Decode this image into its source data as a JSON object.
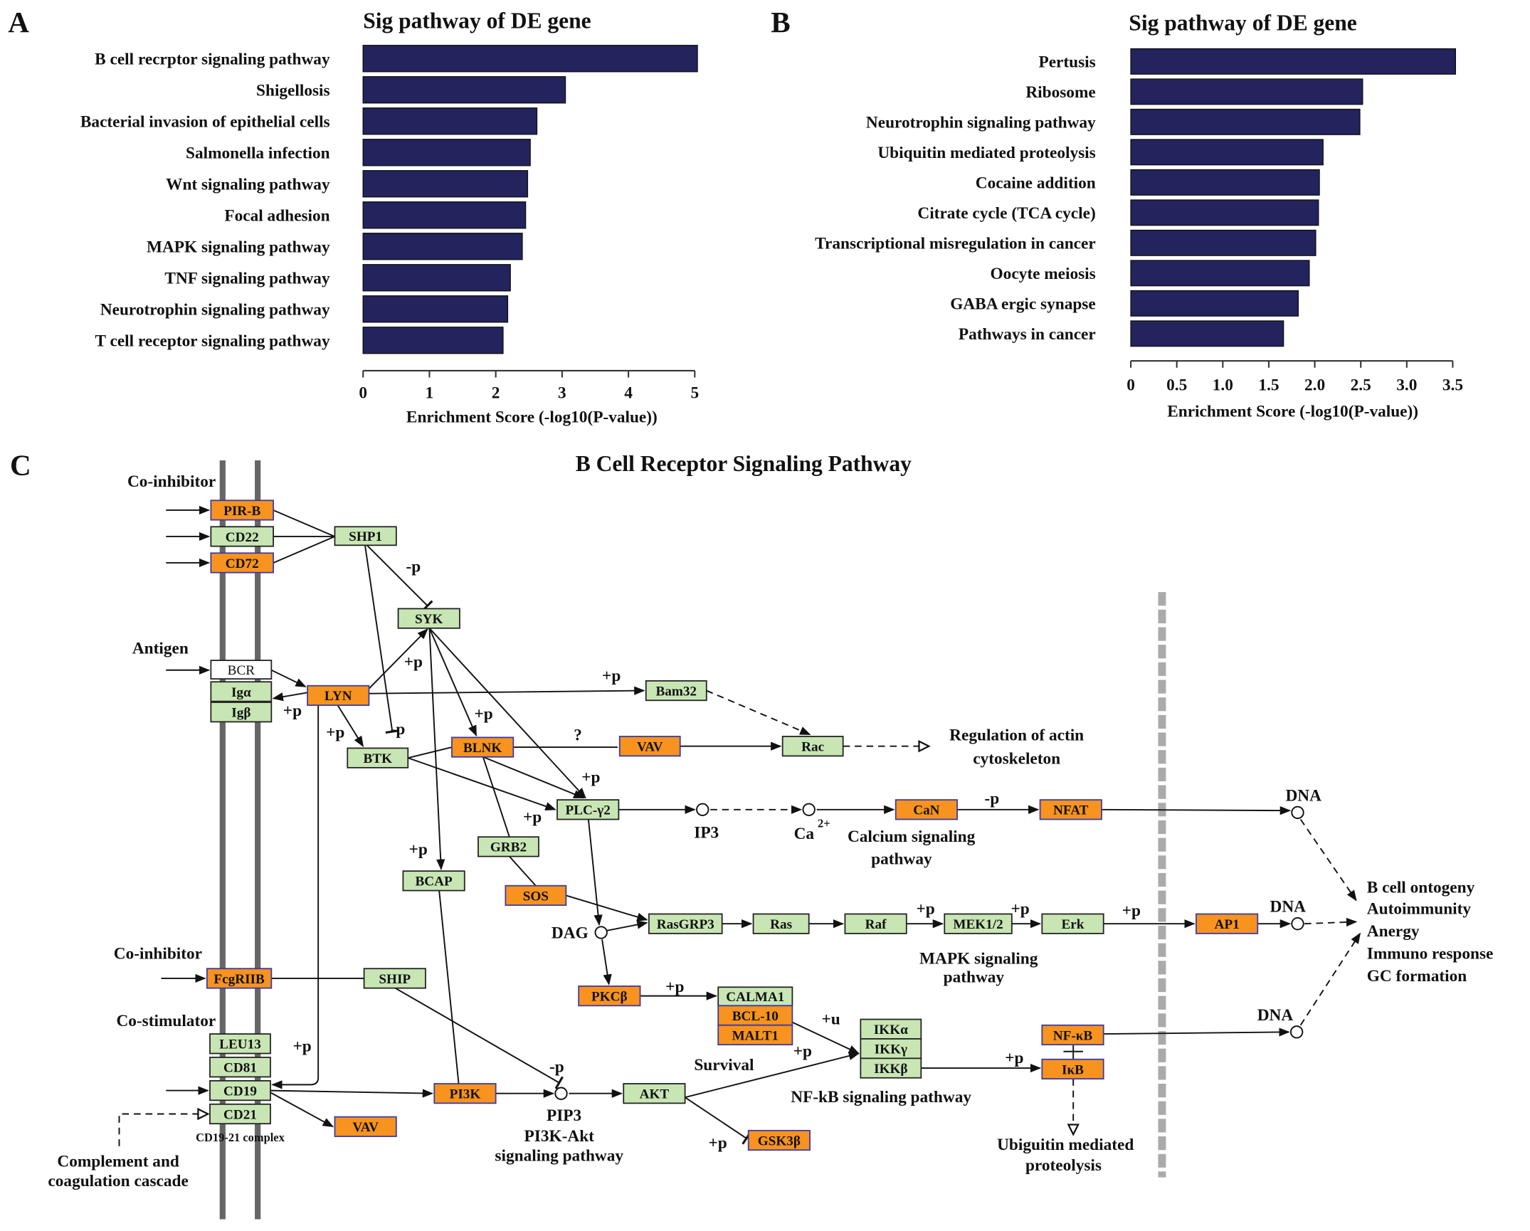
{
  "panels": {
    "a": "A",
    "b": "B",
    "c": "C"
  },
  "chart_data": [
    {
      "type": "bar",
      "orientation": "horizontal",
      "title": "Sig pathway of DE gene",
      "xlabel": "Enrichment Score (-log10(P-value))",
      "ylabel": "",
      "categories": [
        "B cell recrptor signaling pathway",
        "Shigellosis",
        "Bacterial invasion of epithelial cells",
        "Salmonella infection",
        "Wnt signaling pathway",
        "Focal adhesion",
        "MAPK signaling pathway",
        "TNF signaling pathway",
        "Neurotrophin signaling pathway",
        "T cell receptor signaling pathway"
      ],
      "values": [
        5.04,
        3.05,
        2.62,
        2.52,
        2.48,
        2.45,
        2.4,
        2.22,
        2.18,
        2.11
      ],
      "xlim": [
        0,
        5
      ],
      "xticks": [
        "0",
        "1",
        "2",
        "3",
        "4",
        "5"
      ],
      "bar_color": "#23235e",
      "grid": false
    },
    {
      "type": "bar",
      "orientation": "horizontal",
      "title": "Sig pathway of DE gene",
      "xlabel": "Enrichment Score (-log10(P-value))",
      "ylabel": "",
      "categories": [
        "Pertusis",
        "Ribosome",
        "Neurotrophin signaling pathway",
        "Ubiquitin mediated proteolysis",
        "Cocaine addition",
        "Citrate cycle (TCA cycle)",
        "Transcriptional misregulation in cancer",
        "Oocyte meiosis",
        "GABA ergic synapse",
        "Pathways in cancer"
      ],
      "values": [
        3.53,
        2.52,
        2.49,
        2.09,
        2.05,
        2.04,
        2.01,
        1.94,
        1.82,
        1.66
      ],
      "xlim": [
        0,
        3.5
      ],
      "xticks": [
        "0",
        "0.5",
        "1.0",
        "1.5",
        "2.0",
        "2.5",
        "3.0",
        "3.5"
      ],
      "bar_color": "#23235e",
      "grid": false
    }
  ],
  "pathway": {
    "title": "B Cell Receptor Signaling Pathway",
    "colors": {
      "orange": "#f7931e",
      "green": "#c8e6b4",
      "white": "#ffffff",
      "orange_border": "#3a3aa8",
      "green_border": "#222222"
    },
    "nodes": [
      {
        "label": "PIR-B",
        "type": "orange"
      },
      {
        "label": "CD22",
        "type": "green"
      },
      {
        "label": "CD72",
        "type": "orange"
      },
      {
        "label": "SHP1",
        "type": "green"
      },
      {
        "label": "SYK",
        "type": "green"
      },
      {
        "label": "BCR",
        "type": "white"
      },
      {
        "label": "Igα",
        "type": "green"
      },
      {
        "label": "Igβ",
        "type": "green"
      },
      {
        "label": "LYN",
        "type": "orange"
      },
      {
        "label": "Bam32",
        "type": "green"
      },
      {
        "label": "BTK",
        "type": "green"
      },
      {
        "label": "BLNK",
        "type": "orange"
      },
      {
        "label": "VAV",
        "type": "orange"
      },
      {
        "label": "Rac",
        "type": "green"
      },
      {
        "label": "PLC-γ2",
        "type": "green"
      },
      {
        "label": "CaN",
        "type": "orange"
      },
      {
        "label": "NFAT",
        "type": "orange"
      },
      {
        "label": "GRB2",
        "type": "green"
      },
      {
        "label": "BCAP",
        "type": "green"
      },
      {
        "label": "SOS",
        "type": "orange"
      },
      {
        "label": "RasGRP3",
        "type": "green"
      },
      {
        "label": "Ras",
        "type": "green"
      },
      {
        "label": "Raf",
        "type": "green"
      },
      {
        "label": "MEK1/2",
        "type": "green"
      },
      {
        "label": "Erk",
        "type": "green"
      },
      {
        "label": "AP1",
        "type": "orange"
      },
      {
        "label": "FcgRIIB",
        "type": "orange"
      },
      {
        "label": "SHIP",
        "type": "green"
      },
      {
        "label": "PKCβ",
        "type": "orange"
      },
      {
        "label": "CALMA1",
        "type": "green"
      },
      {
        "label": "BCL-10",
        "type": "orange"
      },
      {
        "label": "MALT1",
        "type": "orange"
      },
      {
        "label": "IKKα",
        "type": "green"
      },
      {
        "label": "IKKγ",
        "type": "green"
      },
      {
        "label": "IKKβ",
        "type": "green"
      },
      {
        "label": "NF-κB",
        "type": "orange"
      },
      {
        "label": "IκB",
        "type": "orange"
      },
      {
        "label": "LEU13",
        "type": "green"
      },
      {
        "label": "CD81",
        "type": "green"
      },
      {
        "label": "CD19",
        "type": "green"
      },
      {
        "label": "CD21",
        "type": "green"
      },
      {
        "label": "PI3K",
        "type": "orange"
      },
      {
        "label": "AKT",
        "type": "green"
      },
      {
        "label": "VAV",
        "type": "orange"
      },
      {
        "label": "GSK3β",
        "type": "orange"
      }
    ],
    "labels": {
      "co_inhibitor_1": "Co-inhibitor",
      "antigen": "Antigen",
      "co_inhibitor_2": "Co-inhibitor",
      "co_stimulator": "Co-stimulator",
      "cd19_21_complex": "CD19-21 complex",
      "complement_1": "Complement and",
      "complement_2": "coagulation cascade",
      "actin_1": "Regulation of actin",
      "actin_2": "cytoskeleton",
      "ip3": "IP3",
      "ca": "Ca",
      "ca_sup": "2+",
      "calcium_1": "Calcium signaling",
      "calcium_2": "pathway",
      "dag": "DAG",
      "mapk_1": "MAPK signaling",
      "mapk_2": "pathway",
      "pip3": "PIP3",
      "pi3k_1": "PI3K-Akt",
      "pi3k_2": "signaling pathway",
      "survival": "Survival",
      "nfkb_path": "NF-kB signaling pathway",
      "ubiq_1": "Ubiguitin mediated",
      "ubiq_2": "proteolysis",
      "dna": "DNA",
      "out_1": "B cell ontogeny",
      "out_2": "Autoimmunity",
      "out_3": "Anergy",
      "out_4": "Immuno response",
      "out_5": "GC formation",
      "plus_p": "+p",
      "minus_p": "-p",
      "plus_u": "+u",
      "question": "?"
    }
  }
}
